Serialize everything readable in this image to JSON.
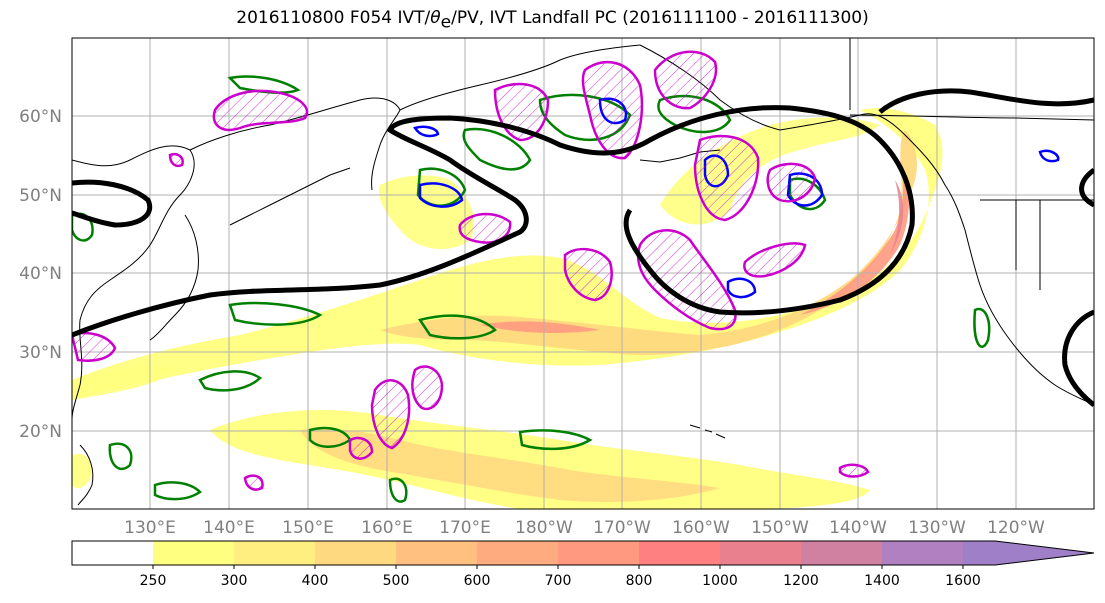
{
  "title": {
    "prefix": "2016110800 F054 IVT/",
    "theta": "θ",
    "theta_sub": "e",
    "suffix": "/PV, IVT Landfall PC (2016111100 - 2016111300)"
  },
  "map": {
    "lat_labels": [
      "60°N",
      "50°N",
      "40°N",
      "30°N",
      "20°N"
    ],
    "lon_labels": [
      "130°E",
      "140°E",
      "150°E",
      "160°E",
      "170°E",
      "180°W",
      "170°W",
      "160°W",
      "150°W",
      "140°W",
      "130°W",
      "120°W"
    ],
    "colors": {
      "jet_contour": "#000000",
      "theta_e_contour": "#008000",
      "pv_contour": "#0000ff",
      "pc_contour": "#cc00cc",
      "coastline": "#000000",
      "gridline": "#b0b0b0"
    }
  },
  "colorbar": {
    "ticks": [
      "250",
      "300",
      "400",
      "500",
      "600",
      "700",
      "800",
      "1000",
      "1200",
      "1400",
      "1600"
    ],
    "colors": [
      "#ffffff",
      "#ffff80",
      "#ffee80",
      "#ffd980",
      "#ffc080",
      "#ffab80",
      "#ff9980",
      "#ff8080",
      "#e8808e",
      "#d080a0",
      "#b080c0",
      "#9f80c8"
    ]
  }
}
